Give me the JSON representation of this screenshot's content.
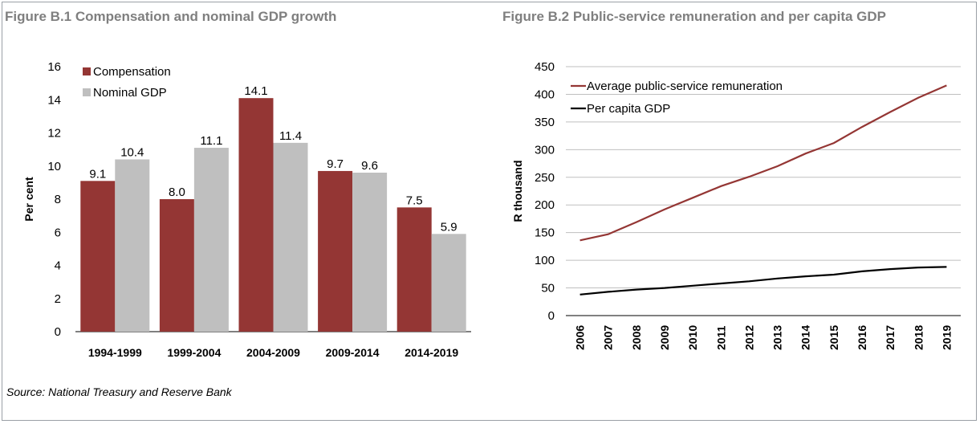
{
  "figure1_title": "Figure B.1 Compensation and nominal GDP growth",
  "figure2_title": "Figure B.2 Public-service remuneration and per capita GDP",
  "source": "Source: National Treasury and Reserve Bank",
  "chart_data": [
    {
      "type": "bar",
      "title": "Figure B.1 Compensation and nominal GDP growth",
      "ylabel": "Per cent",
      "xlabel": "",
      "categories": [
        "1994-1999",
        "1999-2004",
        "2004-2009",
        "2009-2014",
        "2014-2019"
      ],
      "series": [
        {
          "name": "Compensation",
          "values": [
            9.1,
            8.0,
            14.1,
            9.7,
            7.5
          ],
          "labels": [
            "9.1",
            "8.0",
            "14.1",
            "9.7",
            "7.5"
          ],
          "color": "#943634"
        },
        {
          "name": "Nominal GDP",
          "values": [
            10.4,
            11.1,
            11.4,
            9.6,
            5.9
          ],
          "labels": [
            "10.4",
            "11.1",
            "11.4",
            "9.6",
            "5.9"
          ],
          "color": "#bfbfbf"
        }
      ],
      "ylim": [
        0,
        16
      ],
      "yticks": [
        0,
        2,
        4,
        6,
        8,
        10,
        12,
        14,
        16
      ],
      "grid": false,
      "legend": "top-left"
    },
    {
      "type": "line",
      "title": "Figure B.2 Public-service remuneration and per capita GDP",
      "ylabel": "R thousand",
      "xlabel": "",
      "x": [
        "2006",
        "2007",
        "2008",
        "2009",
        "2010",
        "2011",
        "2012",
        "2013",
        "2014",
        "2015",
        "2016",
        "2017",
        "2018",
        "2019"
      ],
      "series": [
        {
          "name": "Average public-service remuneration",
          "values": [
            136,
            147,
            169,
            192,
            213,
            234,
            251,
            270,
            293,
            312,
            341,
            368,
            394,
            416
          ],
          "color": "#943634"
        },
        {
          "name": "Per capita GDP",
          "values": [
            38,
            43,
            47,
            50,
            54,
            58,
            62,
            67,
            71,
            74,
            80,
            84,
            87,
            88
          ],
          "color": "#000000"
        }
      ],
      "ylim": [
        0,
        450
      ],
      "yticks": [
        0,
        50,
        100,
        150,
        200,
        250,
        300,
        350,
        400,
        450
      ],
      "grid": true,
      "legend": "top-left"
    }
  ]
}
